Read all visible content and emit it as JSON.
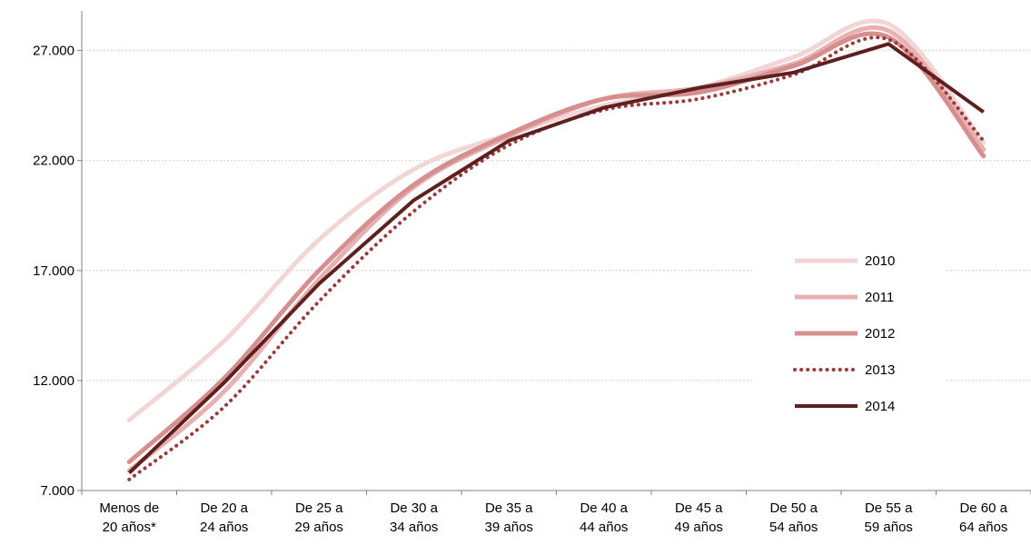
{
  "chart_data": {
    "type": "line",
    "categories": [
      [
        "Menos de",
        "20 años*"
      ],
      [
        "De 20 a",
        "24 años"
      ],
      [
        "De 25 a",
        "29 años"
      ],
      [
        "De 30 a",
        "34 años"
      ],
      [
        "De 35 a",
        "39 años"
      ],
      [
        "De 40 a",
        "44 años"
      ],
      [
        "De 45 a",
        "49 años"
      ],
      [
        "De 50 a",
        "54 años"
      ],
      [
        "De 55 a",
        "59 años"
      ],
      [
        "De 60 a",
        "64 años"
      ]
    ],
    "yticks": [
      7000,
      12000,
      17000,
      22000,
      27000
    ],
    "ytick_labels": [
      "7.000",
      "12.000",
      "17.000",
      "22.000",
      "27.000"
    ],
    "ylim": [
      7000,
      28800
    ],
    "grid": true,
    "legend_position": "right",
    "series": [
      {
        "name": "2010",
        "color": "#f2d6d6",
        "style": "solid-smooth",
        "values": [
          10200,
          13800,
          18400,
          21600,
          23200,
          24500,
          25300,
          26700,
          28200,
          22800
        ]
      },
      {
        "name": "2011",
        "color": "#e8b0b0",
        "style": "solid-smooth",
        "values": [
          7900,
          11500,
          16600,
          20800,
          23100,
          24800,
          25300,
          26400,
          27900,
          22500
        ]
      },
      {
        "name": "2012",
        "color": "#d68f8f",
        "style": "solid-smooth",
        "values": [
          8300,
          12100,
          17000,
          20900,
          23200,
          24800,
          25100,
          26300,
          27600,
          22200
        ]
      },
      {
        "name": "2013",
        "color": "#9c3a3a",
        "style": "dotted",
        "values": [
          7500,
          10800,
          15600,
          19700,
          22700,
          24300,
          24800,
          25900,
          27500,
          22900
        ]
      },
      {
        "name": "2014",
        "color": "#5e1f1f",
        "style": "solid",
        "values": [
          7800,
          11900,
          16400,
          20200,
          22900,
          24400,
          25300,
          26000,
          27300,
          24200
        ]
      }
    ]
  }
}
